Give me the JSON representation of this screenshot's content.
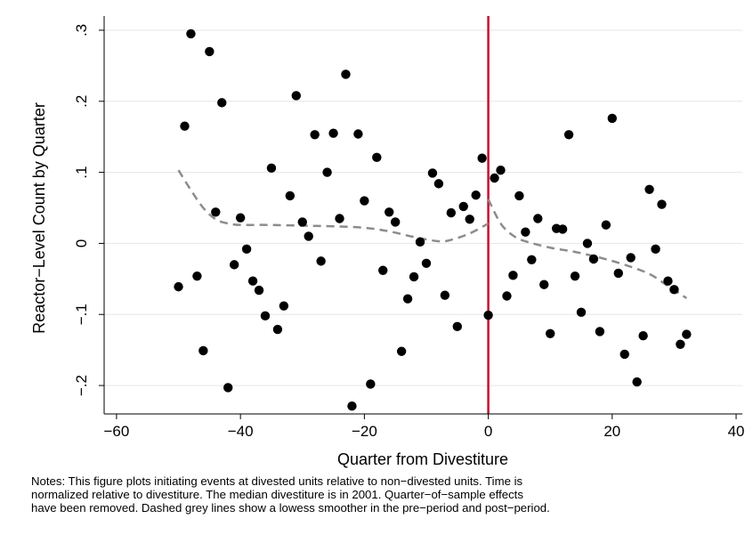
{
  "chart_data": {
    "type": "scatter",
    "title": "",
    "xlabel": "Quarter from Divestiture",
    "ylabel": "Reactor−Level Count by Quarter",
    "xlim": [
      -62,
      41
    ],
    "ylim": [
      -0.24,
      0.32
    ],
    "xticks": [
      -60,
      -40,
      -20,
      0,
      20,
      40
    ],
    "xtick_labels": [
      "−60",
      "−40",
      "−20",
      "0",
      "20",
      "40"
    ],
    "yticks": [
      -0.2,
      -0.1,
      0,
      0.1,
      0.2,
      0.3
    ],
    "ytick_labels": [
      "−.2",
      "−.1",
      "0",
      ".1",
      ".2",
      ".3"
    ],
    "grid": "horizontal",
    "legend": "none",
    "points": [
      {
        "x": -50,
        "y": -0.061
      },
      {
        "x": -49,
        "y": 0.165
      },
      {
        "x": -48,
        "y": 0.295
      },
      {
        "x": -47,
        "y": -0.046
      },
      {
        "x": -46,
        "y": -0.151
      },
      {
        "x": -45,
        "y": 0.27
      },
      {
        "x": -44,
        "y": 0.044
      },
      {
        "x": -43,
        "y": 0.198
      },
      {
        "x": -42,
        "y": -0.203
      },
      {
        "x": -41,
        "y": -0.03
      },
      {
        "x": -40,
        "y": 0.036
      },
      {
        "x": -39,
        "y": -0.008
      },
      {
        "x": -38,
        "y": -0.053
      },
      {
        "x": -37,
        "y": -0.066
      },
      {
        "x": -36,
        "y": -0.102
      },
      {
        "x": -35,
        "y": 0.106
      },
      {
        "x": -34,
        "y": -0.121
      },
      {
        "x": -33,
        "y": -0.088
      },
      {
        "x": -32,
        "y": 0.067
      },
      {
        "x": -31,
        "y": 0.208
      },
      {
        "x": -30,
        "y": 0.03
      },
      {
        "x": -29,
        "y": 0.01
      },
      {
        "x": -28,
        "y": 0.153
      },
      {
        "x": -27,
        "y": -0.025
      },
      {
        "x": -26,
        "y": 0.1
      },
      {
        "x": -25,
        "y": 0.155
      },
      {
        "x": -24,
        "y": 0.035
      },
      {
        "x": -23,
        "y": 0.238
      },
      {
        "x": -22,
        "y": -0.229
      },
      {
        "x": -21,
        "y": 0.154
      },
      {
        "x": -20,
        "y": 0.06
      },
      {
        "x": -19,
        "y": -0.198
      },
      {
        "x": -18,
        "y": 0.121
      },
      {
        "x": -17,
        "y": -0.038
      },
      {
        "x": -16,
        "y": 0.044
      },
      {
        "x": -15,
        "y": 0.03
      },
      {
        "x": -14,
        "y": -0.152
      },
      {
        "x": -13,
        "y": -0.078
      },
      {
        "x": -12,
        "y": -0.047
      },
      {
        "x": -11,
        "y": 0.002
      },
      {
        "x": -10,
        "y": -0.028
      },
      {
        "x": -9,
        "y": 0.099
      },
      {
        "x": -8,
        "y": 0.084
      },
      {
        "x": -7,
        "y": -0.073
      },
      {
        "x": -6,
        "y": 0.043
      },
      {
        "x": -5,
        "y": -0.117
      },
      {
        "x": -4,
        "y": 0.052
      },
      {
        "x": -3,
        "y": 0.034
      },
      {
        "x": -2,
        "y": 0.068
      },
      {
        "x": -1,
        "y": 0.12
      },
      {
        "x": 0,
        "y": -0.101
      },
      {
        "x": 1,
        "y": 0.092
      },
      {
        "x": 2,
        "y": 0.103
      },
      {
        "x": 3,
        "y": -0.074
      },
      {
        "x": 4,
        "y": -0.045
      },
      {
        "x": 5,
        "y": 0.067
      },
      {
        "x": 6,
        "y": 0.016
      },
      {
        "x": 7,
        "y": -0.023
      },
      {
        "x": 8,
        "y": 0.035
      },
      {
        "x": 9,
        "y": -0.058
      },
      {
        "x": 10,
        "y": -0.127
      },
      {
        "x": 11,
        "y": 0.021
      },
      {
        "x": 12,
        "y": 0.02
      },
      {
        "x": 13,
        "y": 0.153
      },
      {
        "x": 14,
        "y": -0.046
      },
      {
        "x": 15,
        "y": -0.097
      },
      {
        "x": 16,
        "y": 0.0
      },
      {
        "x": 17,
        "y": -0.022
      },
      {
        "x": 18,
        "y": -0.124
      },
      {
        "x": 19,
        "y": 0.026
      },
      {
        "x": 20,
        "y": 0.176
      },
      {
        "x": 21,
        "y": -0.042
      },
      {
        "x": 22,
        "y": -0.156
      },
      {
        "x": 23,
        "y": -0.02
      },
      {
        "x": 24,
        "y": -0.195
      },
      {
        "x": 25,
        "y": -0.13
      },
      {
        "x": 26,
        "y": 0.076
      },
      {
        "x": 27,
        "y": -0.008
      },
      {
        "x": 28,
        "y": 0.055
      },
      {
        "x": 29,
        "y": -0.053
      },
      {
        "x": 30,
        "y": -0.065
      },
      {
        "x": 31,
        "y": -0.142
      },
      {
        "x": 32,
        "y": -0.128
      }
    ],
    "smoother_pre": [
      [
        -50,
        0.103
      ],
      [
        -48,
        0.075
      ],
      [
        -46,
        0.05
      ],
      [
        -44,
        0.034
      ],
      [
        -42,
        0.028
      ],
      [
        -40,
        0.026
      ],
      [
        -36,
        0.026
      ],
      [
        -30,
        0.025
      ],
      [
        -25,
        0.024
      ],
      [
        -20,
        0.022
      ],
      [
        -16,
        0.017
      ],
      [
        -12,
        0.009
      ],
      [
        -8,
        0.003
      ],
      [
        -6,
        0.005
      ],
      [
        -3,
        0.014
      ],
      [
        0,
        0.028
      ]
    ],
    "smoother_post": [
      [
        0,
        0.062
      ],
      [
        2,
        0.028
      ],
      [
        4,
        0.011
      ],
      [
        6,
        0.003
      ],
      [
        10,
        -0.006
      ],
      [
        14,
        -0.012
      ],
      [
        18,
        -0.02
      ],
      [
        22,
        -0.03
      ],
      [
        26,
        -0.043
      ],
      [
        29,
        -0.06
      ],
      [
        32,
        -0.077
      ]
    ],
    "divestiture_line_x": 0,
    "colors": {
      "points": "#000000",
      "smoother": "#8c8c8c",
      "divestiture_line": "#c8102e",
      "grid": "#e6e6e6",
      "axis": "#000000"
    }
  },
  "notes": [
    "Notes: This figure plots initiating events at divested units relative to non−divested units. Time is",
    "normalized relative to divestiture. The median divestiture is in 2001. Quarter−of−sample effects",
    "have been removed. Dashed grey lines show a lowess smoother in the pre−period and post−period."
  ]
}
